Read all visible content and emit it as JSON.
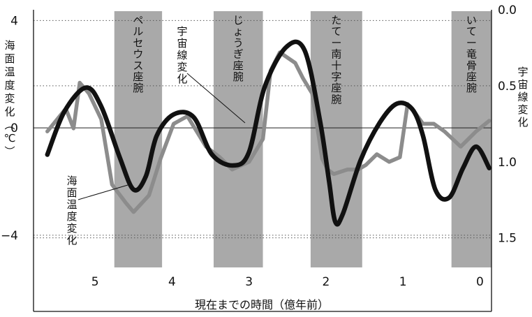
{
  "chart_data": {
    "type": "line",
    "xlabel": "現在までの時間（億年前）",
    "ylabel_left": "海面温度変化(℃)",
    "ylabel_right": "宇宙線変化",
    "x_ticks": [
      5,
      4,
      3,
      2,
      1,
      0
    ],
    "xlim": [
      5.8,
      -0.15
    ],
    "y_left_ticks": [
      4,
      0,
      -4
    ],
    "y_left_lim": [
      -5.8,
      4.4
    ],
    "y_right_ticks": [
      "0.0",
      "0.5",
      "1.0",
      "1.5"
    ],
    "y_right_lim": [
      1.8,
      0.0
    ],
    "arms": [
      {
        "label": "ペルセウス座腕",
        "x_start": 4.75,
        "x_end": 4.13
      },
      {
        "label": "じょうぎ座腕",
        "x_start": 3.46,
        "x_end": 2.82
      },
      {
        "label": "たてー南十字座腕",
        "x_start": 2.2,
        "x_end": 1.53
      },
      {
        "label": "いてー竜骨座腕",
        "x_start": 0.37,
        "x_end": -0.15
      }
    ],
    "series": [
      {
        "name": "海面温度変化",
        "axis": "left",
        "color": "#111111",
        "x": [
          5.62,
          5.4,
          5.12,
          4.92,
          4.68,
          4.5,
          4.34,
          4.2,
          3.98,
          3.72,
          3.48,
          3.2,
          3.0,
          2.8,
          2.52,
          2.28,
          2.08,
          1.96,
          1.88,
          1.78,
          1.55,
          1.3,
          1.08,
          0.88,
          0.74,
          0.58,
          0.4,
          0.22,
          0.05,
          -0.12
        ],
        "y": [
          -1.0,
          0.6,
          1.5,
          0.8,
          -1.1,
          -2.3,
          -1.8,
          -0.3,
          0.5,
          0.4,
          -1.0,
          -1.4,
          -0.9,
          1.5,
          3.0,
          2.9,
          0.3,
          -2.0,
          -3.5,
          -3.2,
          -1.2,
          0.2,
          0.9,
          0.7,
          -0.3,
          -2.3,
          -2.6,
          -1.5,
          -0.7,
          -1.5
        ]
      },
      {
        "name": "宇宙線変化",
        "axis": "right",
        "color": "#8c8c8c",
        "x": [
          5.62,
          5.38,
          5.28,
          5.2,
          5.08,
          4.92,
          4.78,
          4.6,
          4.5,
          4.3,
          4.15,
          3.98,
          3.8,
          3.56,
          3.38,
          3.22,
          3.0,
          2.82,
          2.72,
          2.6,
          2.4,
          2.3,
          2.18,
          2.05,
          1.98,
          1.9,
          1.72,
          1.58,
          1.48,
          1.34,
          1.18,
          1.04,
          0.94,
          0.84,
          0.74,
          0.6,
          0.46,
          0.25,
          0.05,
          -0.12
        ],
        "y": [
          0.8,
          0.65,
          0.78,
          0.48,
          0.55,
          0.72,
          1.15,
          1.27,
          1.33,
          1.22,
          0.98,
          0.75,
          0.7,
          0.9,
          0.97,
          1.05,
          1.0,
          0.85,
          0.4,
          0.28,
          0.35,
          0.45,
          0.55,
          0.98,
          1.05,
          1.08,
          1.05,
          1.05,
          1.02,
          0.95,
          1.0,
          0.97,
          0.62,
          0.68,
          0.75,
          0.75,
          0.8,
          0.9,
          0.8,
          0.73
        ]
      }
    ],
    "annotations": [
      {
        "text": "宇宙線変化",
        "target": "宇宙線変化"
      },
      {
        "text": "海面温度変化",
        "target": "海面温度変化"
      }
    ]
  }
}
